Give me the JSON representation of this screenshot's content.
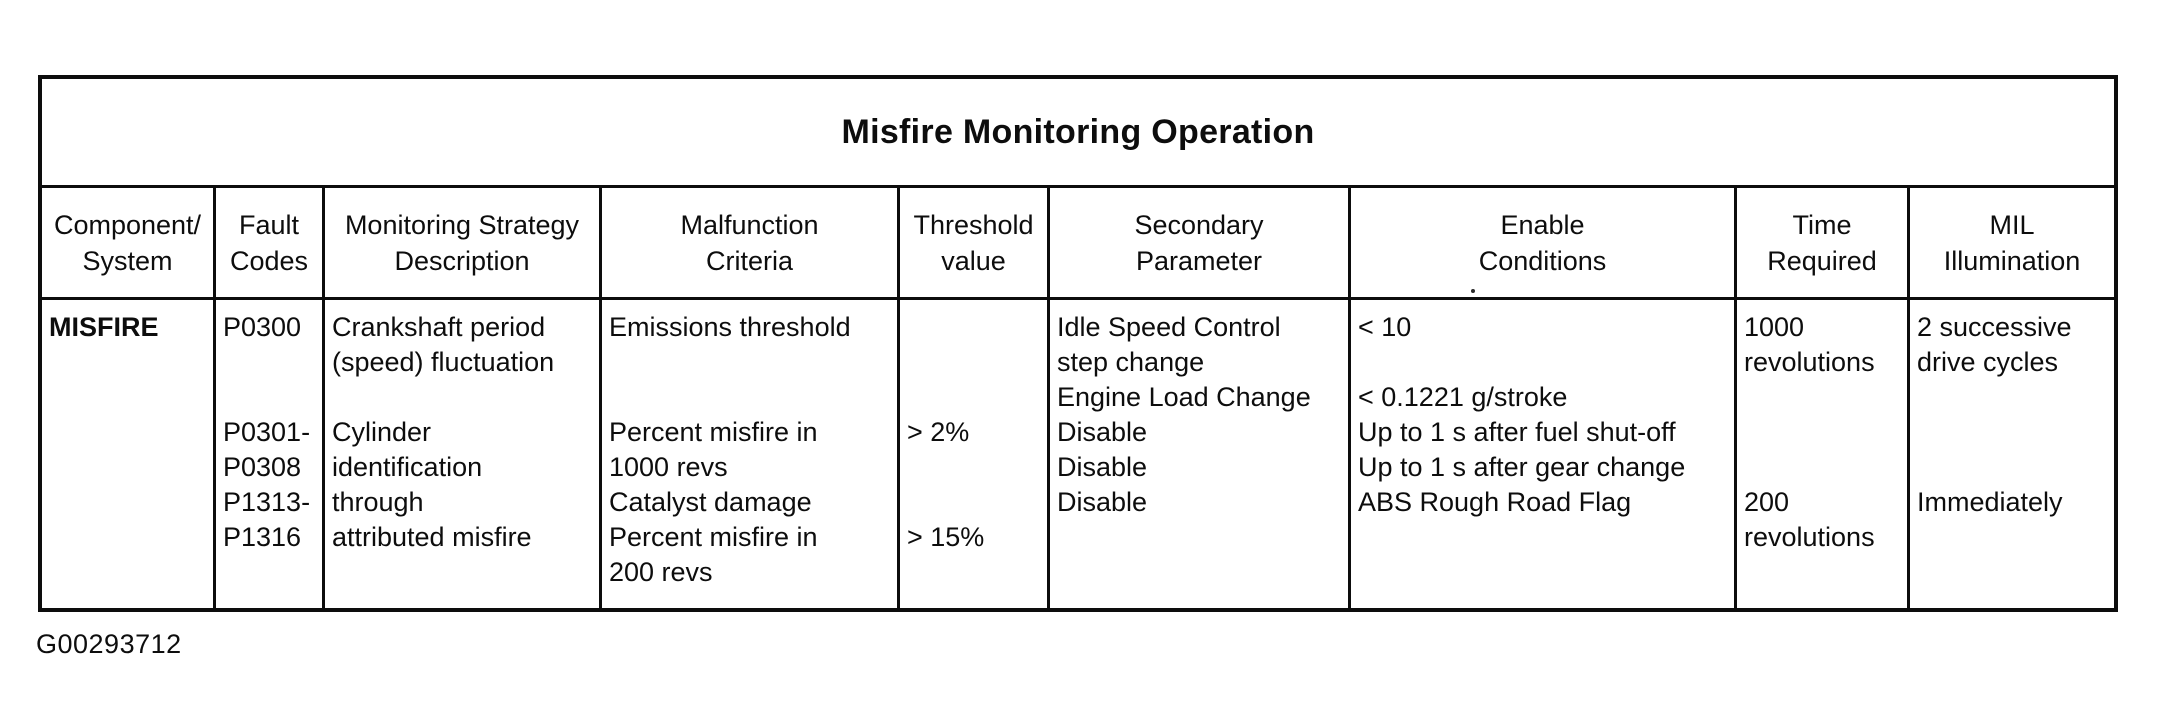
{
  "title": "Misfire Monitoring Operation",
  "figure_code": "G00293712",
  "colors": {
    "ink": "#0d0d0d",
    "paper": "#ffffff"
  },
  "table": {
    "header_lines": {
      "component": [
        "Component/",
        "System"
      ],
      "fault_codes": [
        "Fault",
        "Codes"
      ],
      "monitoring": [
        "Monitoring Strategy",
        "Description"
      ],
      "malfunction": [
        "Malfunction",
        "Criteria"
      ],
      "threshold": [
        "Threshold",
        "value"
      ],
      "secondary": [
        "Secondary",
        "Parameter"
      ],
      "enable": [
        "Enable",
        "Conditions"
      ],
      "time": [
        "Time",
        "Required"
      ],
      "mil": [
        "MIL",
        "Illumination"
      ]
    },
    "row": {
      "component": [
        "MISFIRE",
        "",
        "",
        "",
        "",
        "",
        "",
        ""
      ],
      "fault_codes": [
        "P0300",
        "",
        "",
        "P0301-",
        "P0308",
        "P1313-",
        "P1316",
        ""
      ],
      "monitoring": [
        "Crankshaft period",
        "(speed) fluctuation",
        "",
        "Cylinder",
        "identification",
        "through",
        "attributed misfire",
        ""
      ],
      "malfunction": [
        "Emissions threshold",
        "",
        "",
        "Percent misfire in",
        "1000 revs",
        "Catalyst damage",
        "Percent misfire in",
        "200 revs"
      ],
      "threshold": [
        "",
        "",
        "",
        "> 2%",
        "",
        "",
        "> 15%",
        ""
      ],
      "secondary": [
        "Idle Speed Control",
        "step change",
        "Engine Load Change",
        "Disable",
        "Disable",
        "Disable",
        "",
        ""
      ],
      "enable": [
        "< 10",
        "",
        "< 0.1221 g/stroke",
        "Up to 1 s after fuel shut-off",
        "Up to 1 s after gear change",
        "ABS Rough Road Flag",
        "",
        ""
      ],
      "time": [
        "1000",
        "revolutions",
        "",
        "",
        "",
        "200",
        "revolutions",
        ""
      ],
      "mil": [
        "2 successive",
        "drive cycles",
        "",
        "",
        "",
        "Immediately",
        "",
        ""
      ]
    }
  }
}
